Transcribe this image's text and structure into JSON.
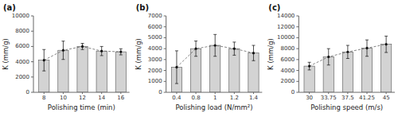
{
  "chart_data": [
    {
      "type": "bar",
      "title": "(a)",
      "xlabel": "Polishing time (min)",
      "ylabel": "K (mm/g)",
      "categories": [
        "8",
        "10",
        "12",
        "14",
        "16"
      ],
      "values": [
        4200,
        5500,
        6000,
        5400,
        5300
      ],
      "errors": [
        1400,
        1200,
        400,
        600,
        400
      ],
      "color": "#d3d3d3",
      "marker": "circle",
      "line_style": "dashed",
      "grid": false,
      "ylim": [
        0,
        10000
      ],
      "yticks": [
        0,
        2000,
        4000,
        6000,
        8000,
        10000
      ]
    },
    {
      "type": "bar",
      "title": "(b)",
      "xlabel": "Polishing load (N/mm²)",
      "ylabel": "K (mm/g)",
      "categories": [
        "0.4",
        "0.8",
        "1",
        "1.2",
        "1.4"
      ],
      "values": [
        2300,
        4000,
        4300,
        4000,
        3600
      ],
      "errors": [
        1500,
        700,
        1000,
        600,
        700
      ],
      "color": "#d3d3d3",
      "marker": "circle",
      "line_style": "dashed",
      "grid": false,
      "ylim": [
        0,
        7000
      ],
      "yticks": [
        0,
        1000,
        2000,
        3000,
        4000,
        5000,
        6000,
        7000
      ]
    },
    {
      "type": "bar",
      "title": "(c)",
      "xlabel": "Polishing speed (m/s)",
      "ylabel": "K (mm/g)",
      "categories": [
        "30",
        "33.75",
        "37.5",
        "41.25",
        "45"
      ],
      "values": [
        4800,
        6500,
        7400,
        8100,
        8800
      ],
      "errors": [
        700,
        1500,
        1200,
        1500,
        1500
      ],
      "color": "#d3d3d3",
      "marker": "circle",
      "line_style": "dashed",
      "grid": false,
      "ylim": [
        0,
        14000
      ],
      "yticks": [
        0,
        2000,
        4000,
        6000,
        8000,
        10000,
        12000,
        14000
      ]
    }
  ]
}
